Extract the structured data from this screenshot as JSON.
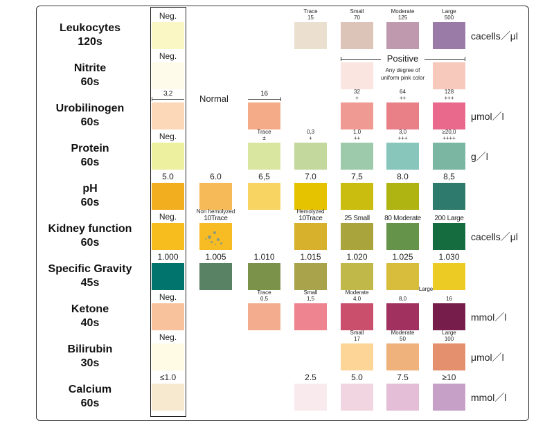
{
  "rows": [
    {
      "name": "Leukocytes",
      "time": "120s",
      "unit": "cacells／μl",
      "cells": [
        {
          "label": "Neg.",
          "color": "#faf7c4"
        },
        null,
        null,
        {
          "top": "Trace",
          "label": "15",
          "color": "#ebdfcf"
        },
        {
          "top": "Small",
          "label": "70",
          "color": "#dcc4b8"
        },
        {
          "top": "Moderate",
          "label": "125",
          "color": "#bf9aae"
        },
        {
          "top": "Large",
          "label": "500",
          "color": "#9a7aa6"
        }
      ]
    },
    {
      "name": "Nitrite",
      "time": "60s",
      "unit": "",
      "cells": [
        {
          "label": "Neg.",
          "color": "#fefbea"
        },
        null,
        null,
        null,
        {
          "color": "#fbe5e0"
        },
        null,
        {
          "color": "#f7c8bc"
        }
      ]
    },
    {
      "name": "Urobilinogen",
      "time": "60s",
      "unit": "μmol／l",
      "cells": [
        {
          "label": "3,2",
          "color": "#fcd7b8"
        },
        null,
        {
          "label": "16",
          "color": "#f4ab88"
        },
        null,
        {
          "top": "32",
          "label": "+",
          "color": "#f09a94"
        },
        {
          "top": "64",
          "label": "++",
          "color": "#e98087"
        },
        {
          "top": "128",
          "label": "+++",
          "color": "#e8698b"
        }
      ]
    },
    {
      "name": "Protein",
      "time": "60s",
      "unit": "g／l",
      "cells": [
        {
          "label": "Neg.",
          "color": "#edf09f"
        },
        null,
        {
          "top": "Trace",
          "label": "±",
          "color": "#d9e6a0"
        },
        {
          "top": "0,3",
          "label": "+",
          "color": "#c3d89c"
        },
        {
          "top": "1,0",
          "label": "++",
          "color": "#9ccaab"
        },
        {
          "top": "3,0",
          "label": "+++",
          "color": "#88c6bb"
        },
        {
          "top": "≥20,0",
          "label": "++++",
          "color": "#7bb6a2"
        }
      ]
    },
    {
      "name": "pH",
      "time": "60s",
      "unit": "",
      "cells": [
        {
          "label": "5.0",
          "color": "#f3ae1f"
        },
        {
          "label": "6.0",
          "color": "#f6bb58"
        },
        {
          "label": "6,5",
          "color": "#f8d462"
        },
        {
          "label": "7.0",
          "color": "#e5c300"
        },
        {
          "label": "7,5",
          "color": "#cbbd10"
        },
        {
          "label": "8.0",
          "color": "#afb412"
        },
        {
          "label": "8,5",
          "color": "#2e7a6c"
        }
      ]
    },
    {
      "name": "Kidney function",
      "time": "60s",
      "unit": "cacells／μl",
      "cells": [
        {
          "label": "Neg.",
          "color": "#f7bd1e"
        },
        {
          "top": "Non hemolyzed",
          "label": "10Trace",
          "color": "#f7bb24"
        },
        null,
        {
          "top": "Hemolyzed",
          "label": "10Trace",
          "color": "#d7b02c"
        },
        {
          "label": "25 Small",
          "color": "#aaa43c"
        },
        {
          "label": "80 Moderate",
          "color": "#66934a"
        },
        {
          "label": "200 Large",
          "color": "#146c3f"
        }
      ]
    },
    {
      "name": "Specific Gravity",
      "time": "45s",
      "unit": "",
      "cells": [
        {
          "label": "1.000",
          "color": "#02746e"
        },
        {
          "label": "1.005",
          "color": "#598164"
        },
        {
          "label": "1.010",
          "color": "#7a924a"
        },
        {
          "label": "1.015",
          "color": "#a9a44c"
        },
        {
          "label": "1.020",
          "color": "#c1b84a"
        },
        {
          "label": "1.025",
          "color": "#d8bd3c"
        },
        {
          "label": "1.030",
          "color": "#eccb24"
        }
      ]
    },
    {
      "name": "Ketone",
      "time": "40s",
      "unit": "mmol／l",
      "extra": "Large",
      "cells": [
        {
          "label": "Neg.",
          "color": "#f8c39c"
        },
        null,
        {
          "top": "Trace",
          "label": "0,5",
          "color": "#f3ad8e"
        },
        {
          "top": "Small",
          "label": "1,5",
          "color": "#ee8490"
        },
        {
          "top": "Moderate",
          "label": "4,0",
          "color": "#c94f6c"
        },
        {
          "label": "8,0",
          "color": "#a1325f"
        },
        {
          "label": "16",
          "color": "#771d4c"
        }
      ]
    },
    {
      "name": "Bilirubin",
      "time": "30s",
      "unit": "μmol／l",
      "cells": [
        {
          "label": "Neg.",
          "color": "#fffbe4"
        },
        null,
        null,
        null,
        {
          "top": "Small",
          "label": "17",
          "color": "#fdd596"
        },
        {
          "top": "Moderate",
          "label": "50",
          "color": "#efb27c"
        },
        {
          "top": "Large",
          "label": "100",
          "color": "#e48f6e"
        }
      ]
    },
    {
      "name": "Calcium",
      "time": "60s",
      "unit": "mmol／l",
      "cells": [
        {
          "label": "≤1.0",
          "color": "#f6e9d0"
        },
        null,
        null,
        {
          "label": "2.5",
          "color": "#f8eaed"
        },
        {
          "label": "5.0",
          "color": "#f1d6e1"
        },
        {
          "label": "7.5",
          "color": "#e4bdd6"
        },
        {
          "label": "≥10",
          "color": "#c6a0c6"
        }
      ]
    }
  ],
  "nitrite_positive": {
    "label": "Positive",
    "note_line1": "Any degree of",
    "note_line2": "uniform pink color"
  },
  "urobilinogen_normal": "Normal"
}
